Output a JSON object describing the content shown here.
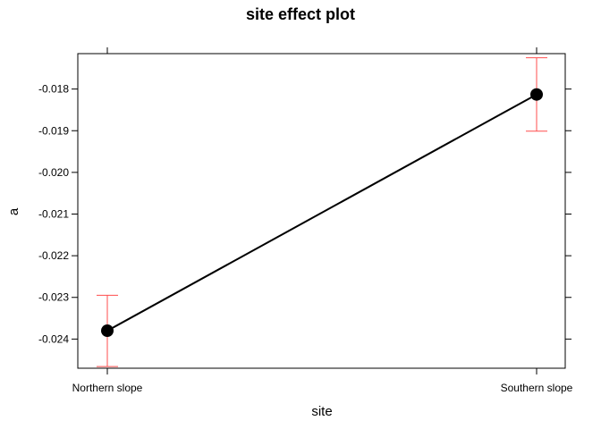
{
  "chart_data": {
    "type": "line",
    "title": "site effect plot",
    "xlabel": "site",
    "ylabel": "a",
    "categories": [
      "Northern slope",
      "Southern slope"
    ],
    "series": [
      {
        "values": [
          -0.0238,
          -0.01813
        ],
        "lower": [
          -0.02466,
          -0.01901
        ],
        "upper": [
          -0.02295,
          -0.01725
        ]
      }
    ],
    "ylim": [
      -0.0247,
      -0.01715
    ],
    "yticks": [
      -0.024,
      -0.023,
      -0.022,
      -0.021,
      -0.02,
      -0.019,
      -0.018
    ],
    "ytick_labels": [
      "-0.024",
      "-0.023",
      "-0.022",
      "-0.021",
      "-0.020",
      "-0.019",
      "-0.018"
    ],
    "grid": false,
    "colors": {
      "line": "#000000",
      "point": "#000000",
      "errorbar": "#ff4d4d"
    }
  }
}
